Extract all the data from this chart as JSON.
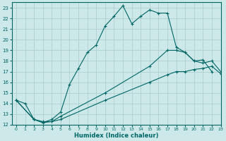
{
  "xlabel": "Humidex (Indice chaleur)",
  "background_color": "#cce8e8",
  "grid_color": "#aacccc",
  "line_color": "#006666",
  "xlim": [
    -0.5,
    23
  ],
  "ylim": [
    12,
    23.5
  ],
  "xticks": [
    0,
    1,
    2,
    3,
    4,
    5,
    6,
    7,
    8,
    9,
    10,
    11,
    12,
    13,
    14,
    15,
    16,
    17,
    18,
    19,
    20,
    21,
    22,
    23
  ],
  "yticks": [
    12,
    13,
    14,
    15,
    16,
    17,
    18,
    19,
    20,
    21,
    22,
    23
  ],
  "series1_x": [
    0,
    1,
    2,
    3,
    4,
    5,
    6,
    7,
    8,
    9,
    10,
    11,
    12,
    13,
    14,
    15,
    16,
    17,
    18,
    19,
    20,
    21,
    22
  ],
  "series1_y": [
    14.3,
    14.0,
    12.5,
    12.2,
    12.5,
    13.2,
    15.8,
    17.3,
    18.8,
    19.5,
    21.3,
    22.2,
    23.2,
    21.5,
    22.2,
    22.8,
    22.5,
    22.5,
    19.3,
    18.8,
    18.0,
    18.1,
    17.0
  ],
  "series2_x": [
    0,
    2,
    3,
    4,
    5,
    10,
    15,
    17,
    18,
    19,
    20,
    21,
    22,
    23
  ],
  "series2_y": [
    14.3,
    12.5,
    12.3,
    12.3,
    12.8,
    15.0,
    17.5,
    19.0,
    19.0,
    18.8,
    18.0,
    17.8,
    18.0,
    17.0
  ],
  "series3_x": [
    0,
    2,
    3,
    4,
    5,
    10,
    15,
    17,
    18,
    19,
    20,
    21,
    22,
    23
  ],
  "series3_y": [
    14.3,
    12.5,
    12.2,
    12.3,
    12.5,
    14.3,
    16.0,
    16.7,
    17.0,
    17.0,
    17.2,
    17.3,
    17.5,
    16.8
  ]
}
